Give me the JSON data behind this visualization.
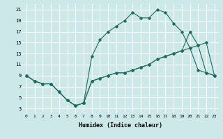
{
  "xlabel": "Humidex (Indice chaleur)",
  "background_color": "#cce8e8",
  "grid_color": "#ffffff",
  "line_color": "#1e6b5e",
  "xlim": [
    -0.5,
    23.5
  ],
  "ylim": [
    2.0,
    22.0
  ],
  "xticks": [
    0,
    1,
    2,
    3,
    4,
    5,
    6,
    7,
    8,
    9,
    10,
    11,
    12,
    13,
    14,
    15,
    16,
    17,
    18,
    19,
    20,
    21,
    22,
    23
  ],
  "yticks": [
    3,
    5,
    7,
    9,
    11,
    13,
    15,
    17,
    19,
    21
  ],
  "line1_x": [
    0,
    1,
    2,
    3,
    4,
    5,
    6,
    7,
    8,
    9,
    10,
    11,
    12,
    13,
    14,
    15,
    16,
    17,
    18,
    19,
    20,
    21,
    22,
    23
  ],
  "line1_y": [
    9,
    8,
    7.5,
    7.5,
    6,
    4.5,
    3.5,
    4,
    8,
    8.5,
    9,
    9.5,
    9.5,
    10,
    10.5,
    11,
    12,
    12.5,
    13,
    13.5,
    14,
    14.5,
    15,
    9
  ],
  "line2_x": [
    0,
    1,
    2,
    3,
    4,
    5,
    6,
    7,
    8,
    9,
    10,
    11,
    12,
    13,
    14,
    15,
    16,
    17,
    18,
    19,
    20,
    21,
    22,
    23
  ],
  "line2_y": [
    9,
    8,
    7.5,
    7.5,
    6,
    4.5,
    3.5,
    4,
    12.5,
    15.5,
    17,
    18,
    19,
    20.5,
    19.5,
    19.5,
    21,
    20.5,
    18.5,
    17,
    14,
    10,
    9.5,
    9
  ],
  "line3_x": [
    0,
    1,
    2,
    3,
    4,
    5,
    6,
    7,
    8,
    9,
    10,
    11,
    12,
    13,
    14,
    15,
    16,
    17,
    18,
    19,
    20,
    21,
    22,
    23
  ],
  "line3_y": [
    9,
    8,
    7.5,
    7.5,
    6,
    4.5,
    3.5,
    4,
    8,
    8.5,
    9,
    9.5,
    9.5,
    10,
    10.5,
    11,
    12,
    12.5,
    13,
    13.5,
    17,
    14.5,
    9.5,
    9
  ]
}
